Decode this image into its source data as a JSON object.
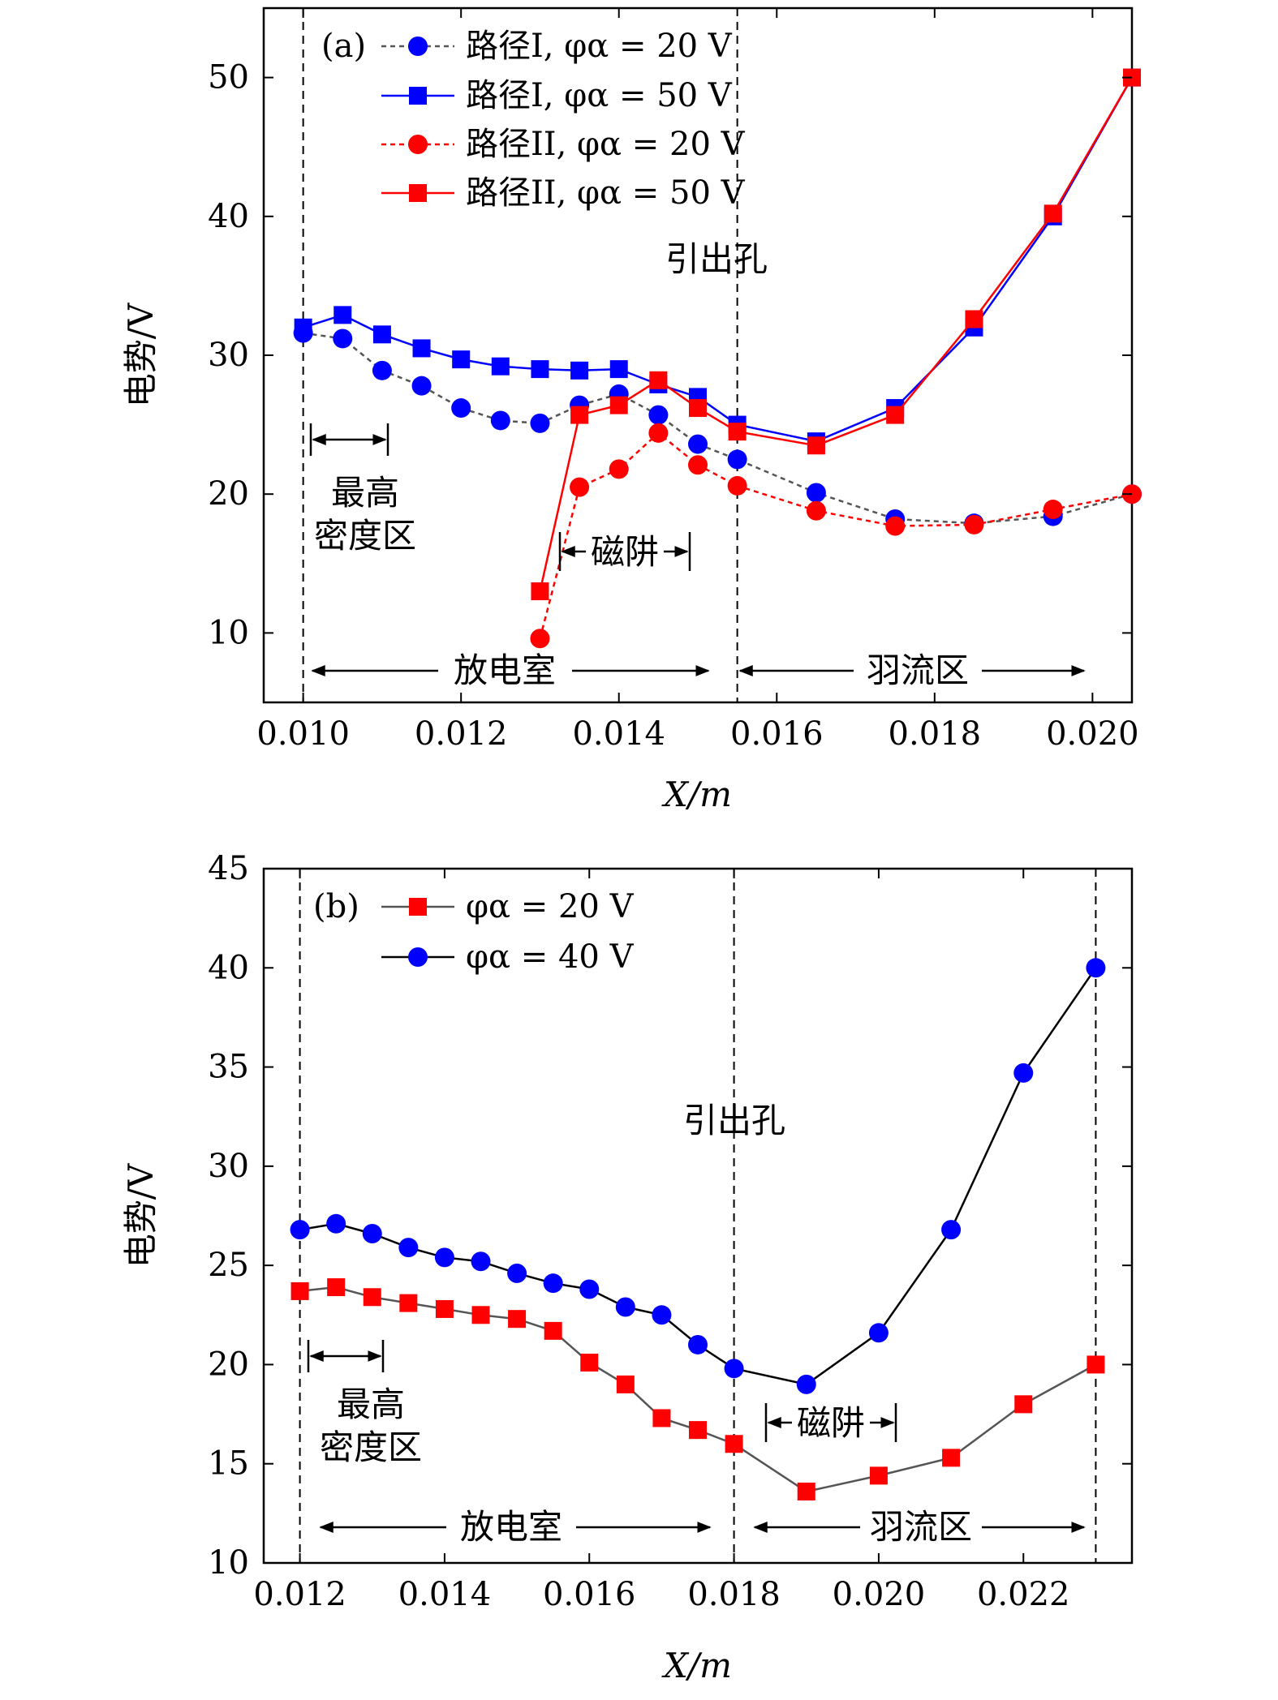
{
  "chart_data": [
    {
      "type": "line",
      "panel_label": "(a)",
      "xlabel": "X/m",
      "ylabel": "电势/V",
      "xlim": [
        0.0095,
        0.0205
      ],
      "ylim": [
        5,
        55
      ],
      "xticks": [
        "0.010",
        "0.012",
        "0.014",
        "0.016",
        "0.018",
        "0.020"
      ],
      "yticks": [
        "10",
        "20",
        "30",
        "40",
        "50"
      ],
      "vlines": [
        0.01,
        0.0155,
        0.0205
      ],
      "series": [
        {
          "name": "路径I, φα = 20 V",
          "color": "#0000ff",
          "line_color": "#555555",
          "marker": "circle",
          "dashed": true,
          "x": [
            0.01,
            0.0105,
            0.011,
            0.0115,
            0.012,
            0.0125,
            0.013,
            0.0135,
            0.014,
            0.0145,
            0.015,
            0.0155,
            0.0165,
            0.0175,
            0.0185,
            0.0195,
            0.0205
          ],
          "y": [
            31.6,
            31.2,
            28.9,
            27.8,
            26.2,
            25.3,
            25.1,
            26.4,
            27.2,
            25.7,
            23.6,
            22.5,
            20.1,
            18.2,
            17.9,
            18.4,
            20.0
          ]
        },
        {
          "name": "路径I, φα = 50 V",
          "color": "#0000ff",
          "line_color": "#0000ff",
          "marker": "square",
          "dashed": false,
          "x": [
            0.01,
            0.0105,
            0.011,
            0.0115,
            0.012,
            0.0125,
            0.013,
            0.0135,
            0.014,
            0.0145,
            0.015,
            0.0155,
            0.0165,
            0.0175,
            0.0185,
            0.0195,
            0.0205
          ],
          "y": [
            32.0,
            32.9,
            31.5,
            30.5,
            29.7,
            29.2,
            29.0,
            28.9,
            29.0,
            27.9,
            27.0,
            25.0,
            23.8,
            26.2,
            32.0,
            40.0,
            50.0
          ]
        },
        {
          "name": "路径II, φα = 20 V",
          "color": "#ff0000",
          "line_color": "#ff0000",
          "marker": "circle",
          "dashed": true,
          "x": [
            0.013,
            0.0135,
            0.014,
            0.0145,
            0.015,
            0.0155,
            0.0165,
            0.0175,
            0.0185,
            0.0195,
            0.0205
          ],
          "y": [
            9.6,
            20.5,
            21.8,
            24.4,
            22.1,
            20.6,
            18.8,
            17.7,
            17.8,
            18.9,
            20.0
          ]
        },
        {
          "name": "路径II, φα = 50 V",
          "color": "#ff0000",
          "line_color": "#ff0000",
          "marker": "square",
          "dashed": false,
          "x": [
            0.013,
            0.0135,
            0.014,
            0.0145,
            0.015,
            0.0155,
            0.0165,
            0.0175,
            0.0185,
            0.0195,
            0.0205
          ],
          "y": [
            13.0,
            25.7,
            26.4,
            28.2,
            26.2,
            24.5,
            23.5,
            25.7,
            32.6,
            40.2,
            50.0
          ]
        }
      ],
      "annotations": {
        "outlet_label": "引出孔",
        "density_label_line1": "最高",
        "density_label_line2": "密度区",
        "trap_label": "磁阱",
        "chamber_label": "放电室",
        "plume_label": "羽流区"
      }
    },
    {
      "type": "line",
      "panel_label": "(b)",
      "xlabel": "X/m",
      "ylabel": "电势/V",
      "xlim": [
        0.0115,
        0.0235
      ],
      "ylim": [
        10,
        45
      ],
      "xticks": [
        "0.012",
        "0.014",
        "0.016",
        "0.018",
        "0.020",
        "0.022"
      ],
      "yticks": [
        "10",
        "15",
        "20",
        "25",
        "30",
        "35",
        "40",
        "45"
      ],
      "vlines": [
        0.012,
        0.018,
        0.023
      ],
      "series": [
        {
          "name": "φα = 20 V",
          "color": "#ff0000",
          "line_color": "#555555",
          "marker": "square",
          "dashed": false,
          "x": [
            0.012,
            0.0125,
            0.013,
            0.0135,
            0.014,
            0.0145,
            0.015,
            0.0155,
            0.016,
            0.0165,
            0.017,
            0.0175,
            0.018,
            0.019,
            0.02,
            0.021,
            0.022,
            0.023
          ],
          "y": [
            23.7,
            23.9,
            23.4,
            23.1,
            22.8,
            22.5,
            22.3,
            21.7,
            20.1,
            19.0,
            17.3,
            16.7,
            16.0,
            13.6,
            14.4,
            15.3,
            18.0,
            20.0
          ]
        },
        {
          "name": "φα = 40 V",
          "color": "#0000ff",
          "line_color": "#000000",
          "marker": "circle",
          "dashed": false,
          "x": [
            0.012,
            0.0125,
            0.013,
            0.0135,
            0.014,
            0.0145,
            0.015,
            0.0155,
            0.016,
            0.0165,
            0.017,
            0.0175,
            0.018,
            0.019,
            0.02,
            0.021,
            0.022,
            0.023
          ],
          "y": [
            26.8,
            27.1,
            26.6,
            25.9,
            25.4,
            25.2,
            24.6,
            24.1,
            23.8,
            22.9,
            22.5,
            21.0,
            19.8,
            19.0,
            21.6,
            26.8,
            34.7,
            40.0
          ]
        }
      ],
      "annotations": {
        "outlet_label": "引出孔",
        "density_label_line1": "最高",
        "density_label_line2": "密度区",
        "trap_label": "磁阱",
        "chamber_label": "放电室",
        "plume_label": "羽流区"
      }
    }
  ]
}
